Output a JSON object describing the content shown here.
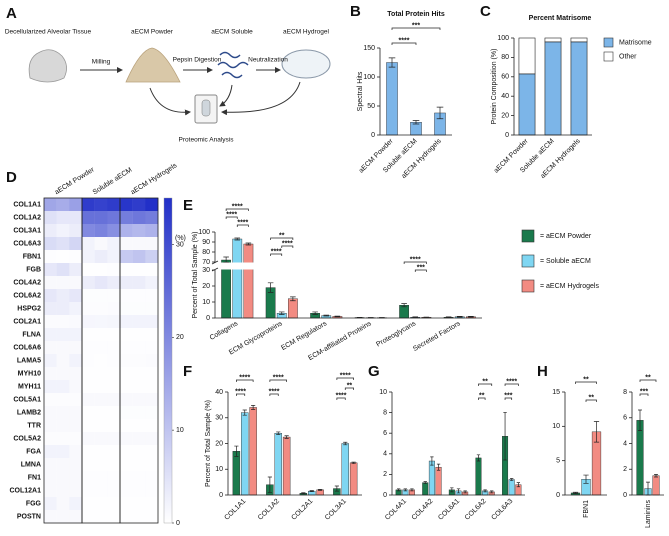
{
  "panel_labels": [
    "A",
    "B",
    "C",
    "D",
    "E",
    "F",
    "G",
    "H"
  ],
  "workflow": {
    "steps": [
      "Decellularized Alveolar Tissue",
      "aECM Powder",
      "aECM Soluble",
      "aECM Hydrogel"
    ],
    "processes": [
      "Milling",
      "Pepsin Digestion",
      "Neutralization"
    ],
    "analysis": "Proteomic Analysis"
  },
  "chart_data": [
    {
      "type": "bar",
      "title": "Total Protein Hits",
      "ylabel": "Spectral Hits",
      "categories": [
        "aECM Powder",
        "Soluble aECM",
        "aECM Hydrogels"
      ],
      "values": [
        125,
        22,
        38
      ],
      "errors": [
        8,
        3,
        10
      ],
      "color": "#7cb5e8",
      "ylim": [
        0,
        150
      ],
      "yticks": [
        0,
        50,
        100,
        150
      ],
      "annotations": [
        "****",
        "***"
      ]
    },
    {
      "type": "stacked_bar",
      "title": "Percent Matrisome",
      "ylabel": "Protein Composition (%)",
      "categories": [
        "aECM Powder",
        "Soluble aECM",
        "aECM Hydrogels"
      ],
      "series": [
        {
          "name": "Matrisome",
          "color": "#7cb5e8",
          "values": [
            63,
            96,
            96
          ]
        },
        {
          "name": "Other",
          "color": "#ffffff",
          "values": [
            37,
            4,
            4
          ]
        }
      ],
      "ylim": [
        0,
        100
      ],
      "yticks": [
        0,
        20,
        40,
        60,
        80,
        100
      ],
      "legend": "right"
    },
    {
      "type": "heatmap",
      "columns": [
        "aECM Powder",
        "Soluble aECM",
        "aECM Hydrogels"
      ],
      "rows": [
        "COL1A1",
        "COL1A2",
        "COL3A1",
        "COL6A3",
        "FBN1",
        "FGB",
        "COL4A2",
        "COL6A2",
        "HSPG2",
        "COL2A1",
        "FLNA",
        "COL6A6",
        "LAMA5",
        "MYH10",
        "MYH11",
        "COL5A1",
        "LAMB2",
        "TTR",
        "COL5A2",
        "FGA",
        "LMNA",
        "FN1",
        "COL12A1",
        "FGG",
        "POSTN"
      ],
      "values": [
        [
          [
            15,
            14,
            16
          ],
          [
            33,
            32,
            33
          ],
          [
            34,
            33,
            35
          ]
        ],
        [
          [
            5,
            4,
            4
          ],
          [
            24,
            24,
            23
          ],
          [
            22,
            23,
            22
          ]
        ],
        [
          [
            3,
            2,
            3
          ],
          [
            20,
            21,
            19
          ],
          [
            13,
            12,
            13
          ]
        ],
        [
          [
            6,
            5,
            7
          ],
          [
            2,
            1,
            2
          ],
          [
            1,
            1,
            1
          ]
        ],
        [
          [
            0.3,
            0.2,
            0.3
          ],
          [
            2,
            3,
            2
          ],
          [
            9,
            10,
            8
          ]
        ],
        [
          [
            4,
            5,
            3
          ],
          [
            0.2,
            0.2,
            0.3
          ],
          [
            0.2,
            0.2,
            0.2
          ]
        ],
        [
          [
            1,
            1,
            1
          ],
          [
            3,
            4,
            3
          ],
          [
            3,
            3,
            2
          ]
        ],
        [
          [
            4,
            3,
            4
          ],
          [
            0.4,
            0.4,
            0.4
          ],
          [
            0.3,
            0.3,
            0.3
          ]
        ],
        [
          [
            3,
            3,
            2
          ],
          [
            0.5,
            0.5,
            0.6
          ],
          [
            0.4,
            0.4,
            0.4
          ]
        ],
        [
          [
            0.7,
            0.6,
            0.8
          ],
          [
            1.5,
            1.4,
            1.6
          ],
          [
            2,
            2,
            2
          ]
        ],
        [
          [
            2,
            2,
            2
          ],
          [
            0.2,
            0.2,
            0.2
          ],
          [
            0.2,
            0.2,
            0.2
          ]
        ],
        [
          [
            1,
            1,
            1
          ],
          [
            0.3,
            0.3,
            0.3
          ],
          [
            0.3,
            0.3,
            0.3
          ]
        ],
        [
          [
            2,
            1,
            2
          ],
          [
            0.3,
            0.2,
            0.3
          ],
          [
            0.5,
            0.5,
            0.6
          ]
        ],
        [
          [
            1,
            1,
            1
          ],
          [
            0.1,
            0.1,
            0.1
          ],
          [
            0.1,
            0.1,
            0.1
          ]
        ],
        [
          [
            2,
            2,
            1
          ],
          [
            0.1,
            0.1,
            0.1
          ],
          [
            0.1,
            0.1,
            0.1
          ]
        ],
        [
          [
            0.5,
            0.5,
            0.5
          ],
          [
            1,
            1,
            1
          ],
          [
            1,
            1,
            1
          ]
        ],
        [
          [
            1,
            1,
            1
          ],
          [
            0.2,
            0.2,
            0.2
          ],
          [
            0.4,
            0.4,
            0.4
          ]
        ],
        [
          [
            1,
            1,
            1
          ],
          [
            0.1,
            0.1,
            0.1
          ],
          [
            0.1,
            0.1,
            0.1
          ]
        ],
        [
          [
            0.5,
            0.5,
            0.5
          ],
          [
            1,
            1,
            1
          ],
          [
            1,
            1,
            1
          ]
        ],
        [
          [
            2,
            2,
            1
          ],
          [
            0.1,
            0.1,
            0.1
          ],
          [
            0.1,
            0.1,
            0.1
          ]
        ],
        [
          [
            1,
            1,
            1
          ],
          [
            0.1,
            0.1,
            0.1
          ],
          [
            0.1,
            0.1,
            0.1
          ]
        ],
        [
          [
            1,
            1,
            1
          ],
          [
            0.3,
            0.3,
            0.3
          ],
          [
            0.3,
            0.3,
            0.3
          ]
        ],
        [
          [
            1,
            1,
            1
          ],
          [
            0.3,
            0.3,
            0.3
          ],
          [
            0.3,
            0.3,
            0.3
          ]
        ],
        [
          [
            2,
            1,
            2
          ],
          [
            0.1,
            0.1,
            0.1
          ],
          [
            0.1,
            0.1,
            0.1
          ]
        ],
        [
          [
            1,
            1,
            1
          ],
          [
            0.2,
            0.2,
            0.2
          ],
          [
            0.2,
            0.2,
            0.2
          ]
        ]
      ],
      "zlim": [
        0,
        35
      ],
      "zticks": [
        0,
        10,
        20,
        30
      ],
      "colorbar_label": "(%)",
      "color": "#2230c8"
    },
    {
      "type": "bar",
      "ylabel": "Percent of Total Sample (%)",
      "categories": [
        "Collagens",
        "ECM Glycoproteins",
        "ECM Regulators",
        "ECM-affiliated Proteins",
        "Proteoglycans",
        "Secreted Factors"
      ],
      "series": [
        {
          "name": "= aECM Powder",
          "color": "#1a7a4c",
          "values": [
            72,
            19,
            3,
            0.3,
            8,
            0.5
          ],
          "errors": [
            3,
            3,
            0.8,
            0.1,
            1,
            0.2
          ]
        },
        {
          "name": "= Soluble aECM",
          "color": "#7fd6f2",
          "values": [
            93,
            3,
            1.5,
            0.2,
            0.5,
            0.8
          ],
          "errors": [
            1,
            0.8,
            0.3,
            0.1,
            0.2,
            0.2
          ]
        },
        {
          "name": "= aECM Hydrogels",
          "color": "#f28b82",
          "values": [
            88,
            12,
            1,
            0.2,
            0.5,
            0.8
          ],
          "errors": [
            1,
            1.2,
            0.2,
            0.1,
            0.1,
            0.2
          ]
        }
      ],
      "ylim": [
        0,
        100
      ],
      "axis_break": [
        30,
        70
      ],
      "yticks": [
        0,
        10,
        20,
        30,
        70,
        80,
        90,
        100
      ],
      "annotations": [
        "****",
        "****",
        "****",
        "**",
        "****",
        "****",
        "****",
        "***"
      ],
      "legend": "right"
    },
    {
      "type": "bar",
      "ylabel": "Percent of Total Sample (%)",
      "categories": [
        "COL1A1",
        "COL1A2",
        "COL2A1",
        "COL3A1"
      ],
      "series": [
        {
          "color": "#1a7a4c",
          "values": [
            17,
            4,
            0.7,
            2.5
          ],
          "errors": [
            2,
            3,
            0.2,
            1
          ]
        },
        {
          "color": "#7fd6f2",
          "values": [
            32,
            24,
            1.5,
            20
          ],
          "errors": [
            1,
            0.5,
            0.2,
            0.5
          ]
        },
        {
          "color": "#f28b82",
          "values": [
            34,
            22.5,
            2,
            12.5
          ],
          "errors": [
            0.8,
            0.5,
            0.2,
            0.3
          ]
        }
      ],
      "ylim": [
        0,
        40
      ],
      "yticks": [
        0,
        10,
        20,
        30,
        40
      ],
      "annotations": [
        "****",
        "****",
        "****",
        "****",
        "****",
        "**",
        "****"
      ]
    },
    {
      "type": "bar",
      "categories": [
        "COL4A1",
        "COL4A2",
        "COL6A1",
        "COL6A2",
        "COL6A3"
      ],
      "series": [
        {
          "color": "#1a7a4c",
          "values": [
            0.5,
            1.2,
            0.5,
            3.6,
            5.7
          ],
          "errors": [
            0.1,
            0.1,
            0.2,
            0.3,
            2.3
          ]
        },
        {
          "color": "#7fd6f2",
          "values": [
            0.5,
            3.3,
            0.4,
            0.4,
            1.5
          ],
          "errors": [
            0.1,
            0.4,
            0.2,
            0.1,
            0.1
          ]
        },
        {
          "color": "#f28b82",
          "values": [
            0.5,
            2.7,
            0.3,
            0.3,
            1.0
          ],
          "errors": [
            0.1,
            0.3,
            0.1,
            0.1,
            0.2
          ]
        }
      ],
      "ylim": [
        0,
        10
      ],
      "yticks": [
        0,
        2,
        4,
        6,
        8,
        10
      ],
      "annotations": [
        "**",
        "**",
        "****",
        "***"
      ]
    },
    {
      "type": "bar",
      "categories": [
        "FBN1"
      ],
      "series": [
        {
          "color": "#1a7a4c",
          "values": [
            0.3
          ],
          "errors": [
            0.1
          ]
        },
        {
          "color": "#7fd6f2",
          "values": [
            2.3
          ],
          "errors": [
            0.6
          ]
        },
        {
          "color": "#f28b82",
          "values": [
            9.2
          ],
          "errors": [
            1.5
          ]
        }
      ],
      "ylim": [
        0,
        15
      ],
      "yticks": [
        0,
        5,
        10,
        15
      ],
      "annotations": [
        "**",
        "**"
      ]
    },
    {
      "type": "bar",
      "categories": [
        "Laminins"
      ],
      "series": [
        {
          "color": "#1a7a4c",
          "values": [
            5.8
          ],
          "errors": [
            0.8
          ]
        },
        {
          "color": "#7fd6f2",
          "values": [
            0.5
          ],
          "errors": [
            0.5
          ]
        },
        {
          "color": "#f28b82",
          "values": [
            1.5
          ],
          "errors": [
            0.1
          ]
        }
      ],
      "ylim": [
        0,
        8
      ],
      "yticks": [
        0,
        2,
        4,
        6,
        8
      ],
      "annotations": [
        "**",
        "***"
      ]
    }
  ]
}
